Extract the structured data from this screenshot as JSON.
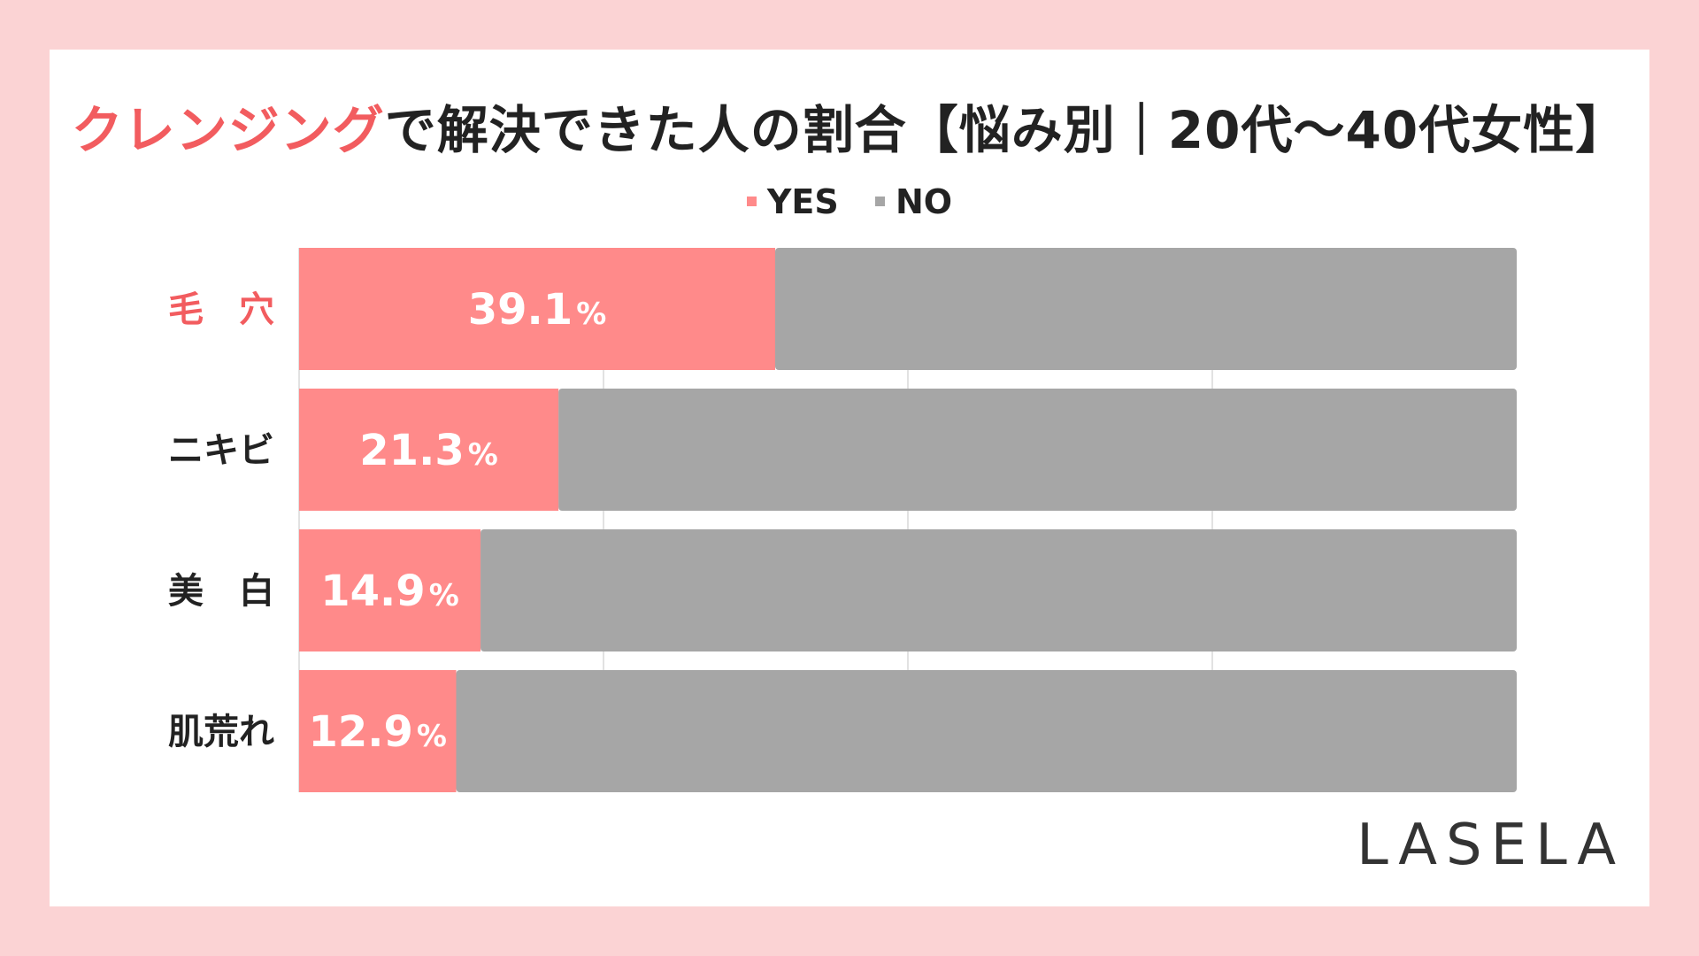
{
  "title": {
    "highlight": "クレンジング",
    "rest": "で解決できた人の割合【悩み別｜20代〜40代女性】"
  },
  "legend": [
    {
      "label": "YES",
      "color": "#FF8A8A"
    },
    {
      "label": "NO",
      "color": "#A6A6A6"
    }
  ],
  "brand": "LASELA",
  "colors": {
    "yes": "#FF8A8A",
    "no": "#A6A6A6",
    "highlight_label": "#F25C5F",
    "label": "#222222",
    "gridline": "#D9D9D9"
  },
  "chart_data": {
    "type": "bar",
    "orientation": "horizontal",
    "stacked": true,
    "percent_stacked": true,
    "categories": [
      "毛　穴",
      "ニキビ",
      "美　白",
      "肌荒れ"
    ],
    "highlight_category_index": 0,
    "series": [
      {
        "name": "YES",
        "values": [
          39.1,
          21.3,
          14.9,
          12.9
        ]
      },
      {
        "name": "NO",
        "values": [
          60.9,
          78.7,
          85.1,
          87.1
        ]
      }
    ],
    "value_labels": [
      "39.1",
      "21.3",
      "14.9",
      "12.9"
    ],
    "value_unit": "%",
    "xlim": [
      0,
      100
    ],
    "grid": true,
    "legend_position": "top-center"
  }
}
